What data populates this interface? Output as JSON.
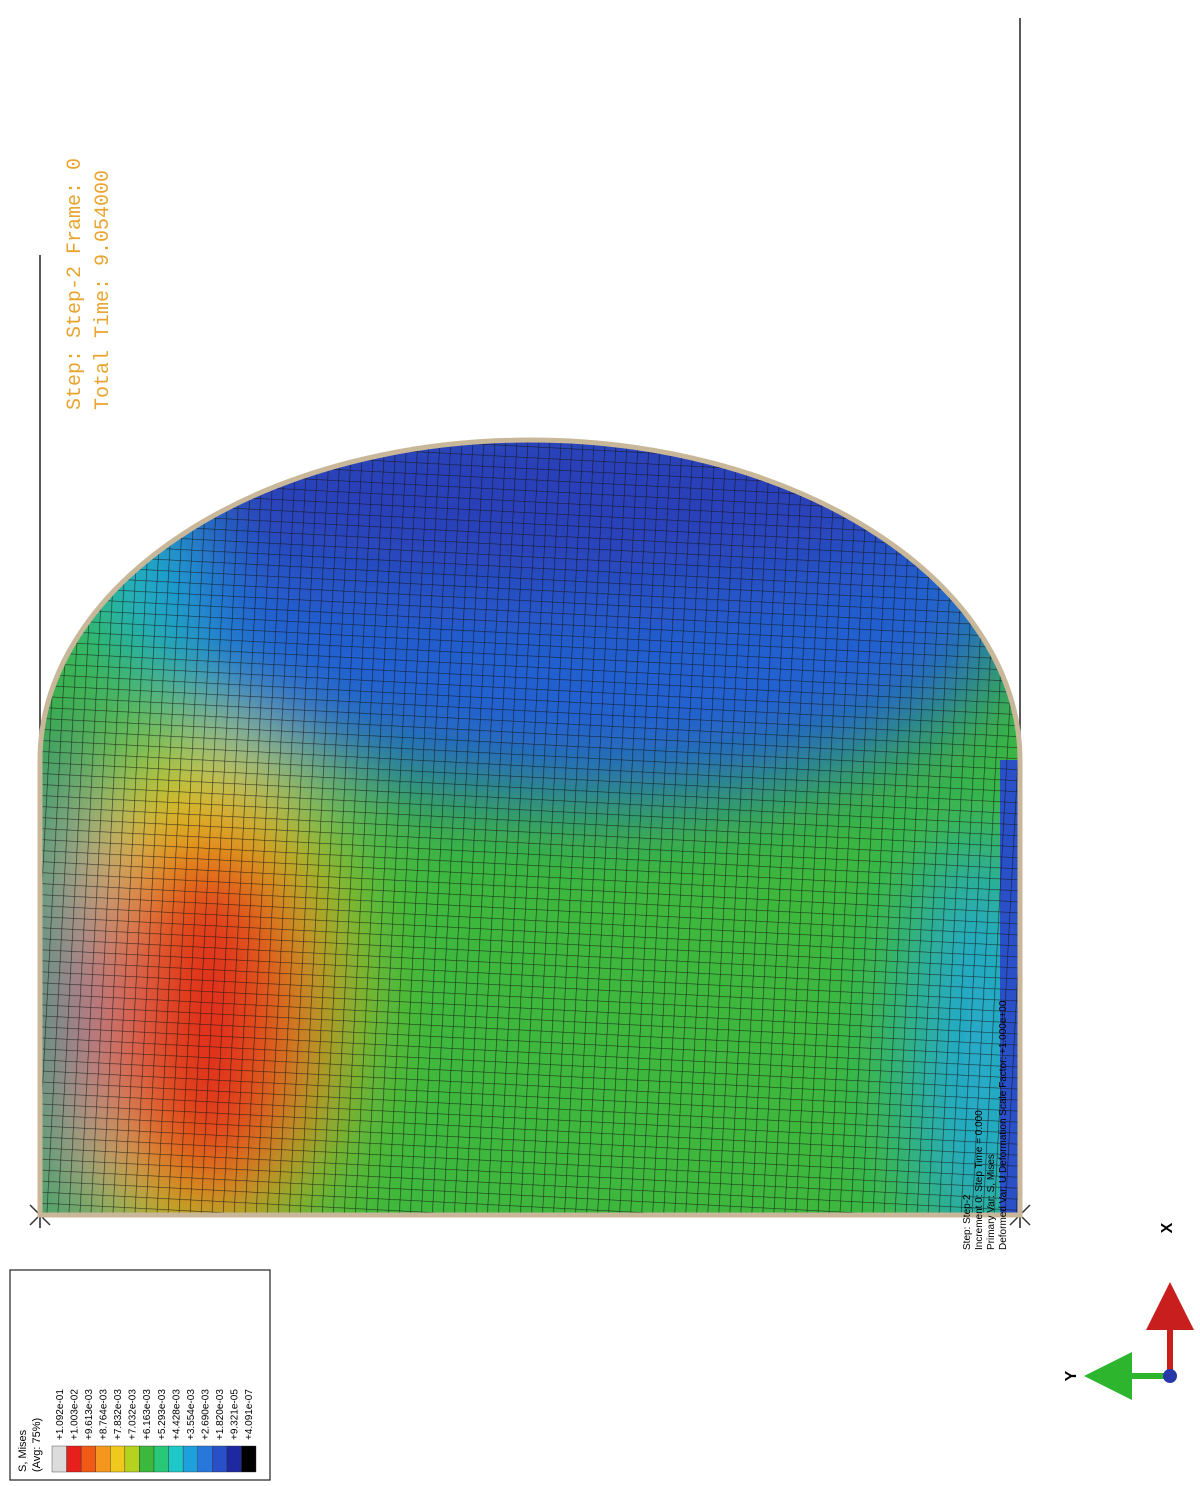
{
  "header": {
    "lines": [
      "Step: Step-2    Frame: 0",
      "Total Time: 9.054000"
    ]
  },
  "legend": {
    "title": "S, Mises",
    "subtitle": "(Avg: 75%)",
    "labels": [
      "+1.092e-01",
      "+1.003e-02",
      "+9.613e-03",
      "+8.764e-03",
      "+7.832e-03",
      "+7.032e-03",
      "+6.163e-03",
      "+5.293e-03",
      "+4.428e-03",
      "+3.554e-03",
      "+2.690e-03",
      "+1.820e-03",
      "+9.321e-05",
      "+4.091e-07"
    ]
  },
  "info": {
    "lines": [
      "Step: Step-2",
      "Increment    0: Step Time =    0.000",
      "Primary Var: S, Mises",
      "Deformed Var: U   Deformation Scale Factor: +1.000e+00"
    ]
  },
  "triad": {
    "y": "Y",
    "x": "X"
  }
}
